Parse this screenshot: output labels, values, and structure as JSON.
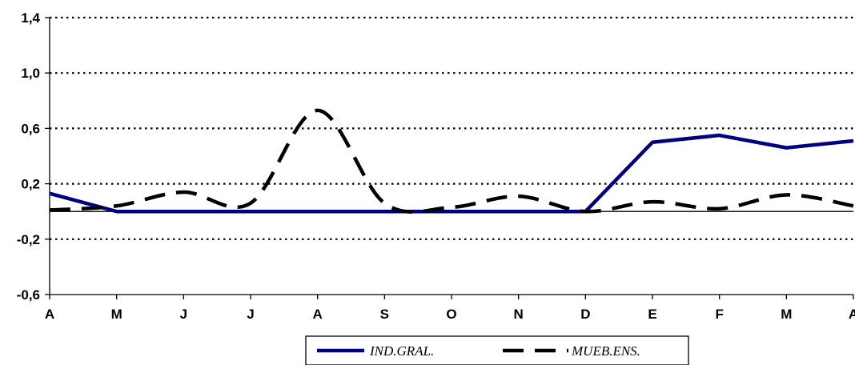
{
  "chart_data": {
    "type": "line",
    "categories": [
      "A",
      "M",
      "J",
      "J",
      "A",
      "S",
      "O",
      "N",
      "D",
      "E",
      "F",
      "M",
      "A"
    ],
    "ylim": [
      -0.6,
      1.4
    ],
    "yticks": [
      "1,4",
      "1,0",
      "0,6",
      "0,2",
      "-0,2",
      "-0,6"
    ],
    "ytick_values": [
      1.4,
      1.0,
      0.6,
      0.2,
      -0.2,
      -0.6
    ],
    "grid": "dotted horizontal",
    "legend_position": "bottom",
    "series": [
      {
        "name": "IND.GRAL.",
        "color": "#000080",
        "style": "solid",
        "values": [
          0.13,
          0.0,
          0.0,
          0.0,
          0.0,
          0.0,
          0.0,
          0.0,
          0.0,
          0.5,
          0.55,
          0.46,
          0.51
        ]
      },
      {
        "name": "MUEB.ENS.",
        "color": "#000000",
        "style": "dashed",
        "values": [
          0.01,
          0.04,
          0.14,
          0.06,
          0.73,
          0.06,
          0.03,
          0.11,
          0.0,
          0.07,
          0.02,
          0.12,
          0.04
        ]
      }
    ]
  }
}
